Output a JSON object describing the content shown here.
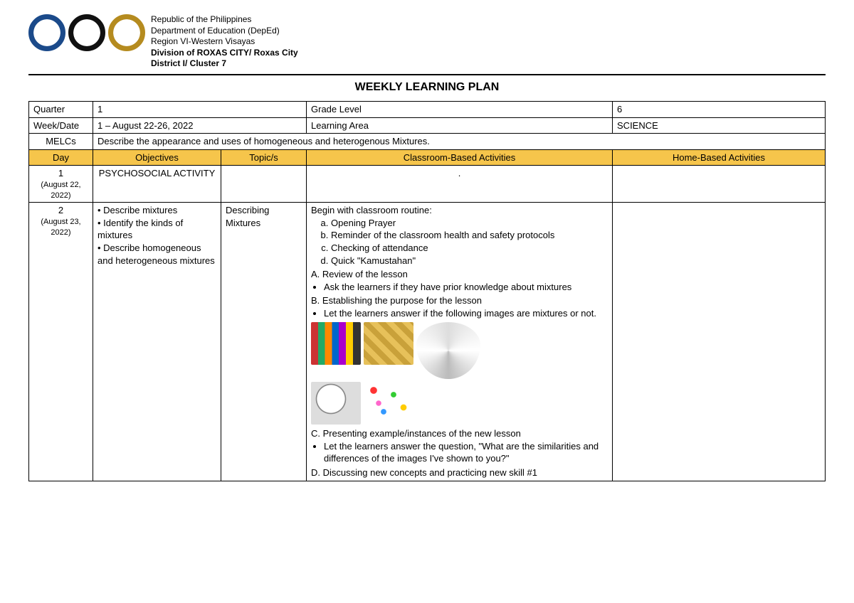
{
  "header": {
    "lines": [
      "Republic of the Philippines",
      "Department of Education (DepEd)",
      "Region VI-Western Visayas"
    ],
    "bold_lines": [
      "Division of ROXAS CITY/ Roxas City",
      "District I/ Cluster 7"
    ]
  },
  "title": "WEEKLY LEARNING PLAN",
  "info": {
    "quarter_label": "Quarter",
    "quarter_value": "1",
    "grade_label": "Grade Level",
    "grade_value": "6",
    "week_label": "Week/Date",
    "week_value": "1 – August 22-26, 2022",
    "area_label": "Learning Area",
    "area_value": "SCIENCE",
    "melcs_label": "MELCs",
    "melcs_value": "Describe the appearance and uses of homogeneous and heterogenous Mixtures."
  },
  "columns": {
    "day": "Day",
    "objectives": "Objectives",
    "topics": "Topic/s",
    "classroom": "Classroom-Based Activities",
    "home": "Home-Based Activities"
  },
  "rows": [
    {
      "day_num": "1",
      "day_date": "(August 22, 2022)",
      "objectives_text": "PSYCHOSOCIAL ACTIVITY",
      "topic": "",
      "classroom": ".",
      "home": ""
    },
    {
      "day_num": "2",
      "day_date": "(August 23, 2022)",
      "objectives_bullets": [
        "Describe mixtures",
        "Identify the kinds of mixtures",
        "Describe homogeneous and heterogeneous mixtures"
      ],
      "topic": "Describing Mixtures",
      "classroom_intro": "Begin with classroom routine:",
      "routine": [
        "Opening Prayer",
        "Reminder of the classroom health and safety protocols",
        "Checking of attendance",
        "Quick \"Kamustahan\""
      ],
      "sectA_title": "A. Review of the lesson",
      "sectA_bullet": "Ask the learners if they have prior knowledge about mixtures",
      "sectB_title": "B.  Establishing the purpose for the lesson",
      "sectB_bullet": "Let the learners answer if the following images are mixtures or not.",
      "sectC_title": "C. Presenting example/instances of the new lesson",
      "sectC_bullet": "Let the learners answer the question, \"What are the similarities and differences of the images I've shown to you?\"",
      "sectD_title": "D. Discussing new concepts and practicing new skill  #1",
      "home": ""
    }
  ]
}
